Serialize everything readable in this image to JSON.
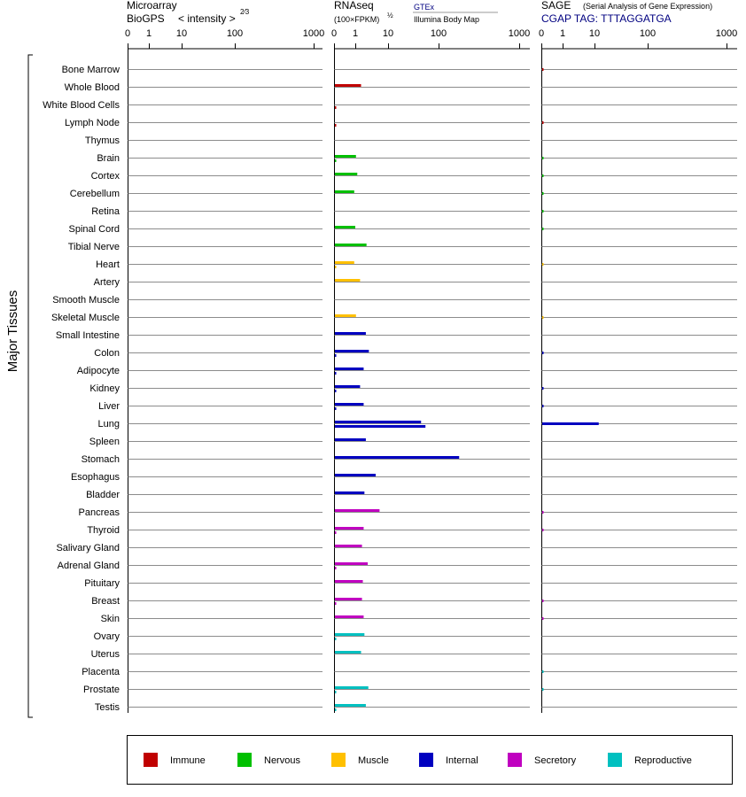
{
  "panels": {
    "microarray": {
      "title": "Microarray",
      "subtitle": "BioGPS",
      "measure": "< intensity >",
      "exponent": "2⁄3",
      "ticks": [
        "0",
        "1",
        "10",
        "100",
        "1000"
      ]
    },
    "rnaseq": {
      "title": "RNAseq",
      "subtitle": "(100×FPKM)",
      "exponent": "½",
      "source_primary": "GTEx",
      "source_secondary": "Illumina Body Map",
      "ticks": [
        "0",
        "1",
        "10",
        "100",
        "1000"
      ]
    },
    "sage": {
      "title": "SAGE",
      "subtitle": "(Serial Analysis of Gene Expression)",
      "tag_label": "CGAP TAG: TTTAGGATGA",
      "ticks": [
        "0",
        "1",
        "10",
        "100",
        "1000"
      ]
    }
  },
  "y_axis_label": "Major Tissues",
  "colors": {
    "Immune": "#c00000",
    "Nervous": "#00c000",
    "Muscle": "#ffc000",
    "Internal": "#0000c0",
    "Secretory": "#c000c0",
    "Reproductive": "#00c0c0"
  },
  "legend": [
    "Immune",
    "Nervous",
    "Muscle",
    "Internal",
    "Secretory",
    "Reproductive"
  ],
  "chart_data": {
    "type": "bar",
    "categories": [
      "Bone Marrow",
      "Whole Blood",
      "White Blood Cells",
      "Lymph Node",
      "Thymus",
      "Brain",
      "Cortex",
      "Cerebellum",
      "Retina",
      "Spinal Cord",
      "Tibial Nerve",
      "Heart",
      "Artery",
      "Smooth Muscle",
      "Skeletal Muscle",
      "Small Intestine",
      "Colon",
      "Adipocyte",
      "Kidney",
      "Liver",
      "Lung",
      "Spleen",
      "Stomach",
      "Esophagus",
      "Bladder",
      "Pancreas",
      "Thyroid",
      "Salivary Gland",
      "Adrenal Gland",
      "Pituitary",
      "Breast",
      "Skin",
      "Ovary",
      "Uterus",
      "Placenta",
      "Prostate",
      "Testis"
    ],
    "groups": [
      "Immune",
      "Immune",
      "Immune",
      "Immune",
      "Immune",
      "Nervous",
      "Nervous",
      "Nervous",
      "Nervous",
      "Nervous",
      "Nervous",
      "Muscle",
      "Muscle",
      "Muscle",
      "Muscle",
      "Internal",
      "Internal",
      "Internal",
      "Internal",
      "Internal",
      "Internal",
      "Internal",
      "Internal",
      "Internal",
      "Internal",
      "Secretory",
      "Secretory",
      "Secretory",
      "Secretory",
      "Secretory",
      "Secretory",
      "Secretory",
      "Reproductive",
      "Reproductive",
      "Reproductive",
      "Reproductive",
      "Reproductive"
    ],
    "x_scale": "nonlinear (0, 1, 10, 100, 1000)",
    "xlim": [
      0,
      1000
    ],
    "series": [
      {
        "name": "GTEx",
        "panel": "RNAseq",
        "values": [
          null,
          1.5,
          null,
          null,
          null,
          1.05,
          1.15,
          0.95,
          null,
          1.0,
          2.2,
          0.95,
          1.4,
          null,
          1.05,
          2.1,
          2.6,
          1.8,
          1.4,
          1.8,
          45,
          2.1,
          180,
          4.2,
          1.9,
          5.5,
          1.8,
          1.6,
          2.4,
          1.7,
          1.6,
          1.8,
          1.9,
          1.5,
          null,
          2.5,
          2.1
        ]
      },
      {
        "name": "Illumina Body Map",
        "panel": "RNAseq",
        "values": [
          null,
          null,
          0.05,
          0.05,
          null,
          0.05,
          null,
          null,
          null,
          null,
          null,
          0.05,
          null,
          null,
          null,
          null,
          0.05,
          0.05,
          0.05,
          0.05,
          55,
          null,
          null,
          null,
          null,
          null,
          0.05,
          null,
          0.05,
          null,
          0.05,
          null,
          0.05,
          null,
          null,
          0.05,
          0.05
        ]
      },
      {
        "name": "SAGE",
        "panel": "SAGE",
        "values": [
          0.04,
          null,
          null,
          0.04,
          null,
          0.04,
          0.04,
          0.04,
          0.04,
          0.04,
          null,
          0.03,
          null,
          null,
          0.03,
          null,
          0.05,
          null,
          0.05,
          0.05,
          12,
          null,
          null,
          null,
          null,
          0.05,
          0.05,
          null,
          null,
          null,
          0.05,
          0.05,
          null,
          null,
          0.05,
          0.05,
          null
        ]
      }
    ]
  }
}
